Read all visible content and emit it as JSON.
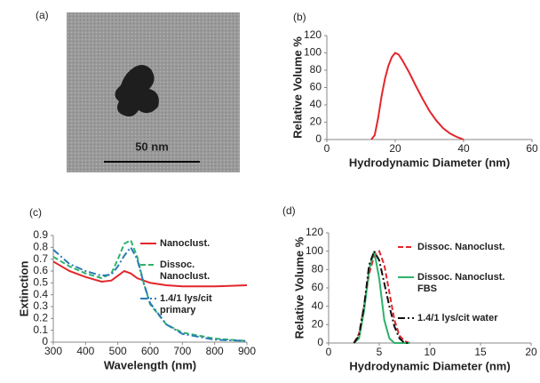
{
  "image_panel": {
    "label": "(a)",
    "scale_bar": "50 nm"
  },
  "chart_data": [
    {
      "type": "line",
      "panel_label": "(b)",
      "x_label": "Hydrodynamic Diameter (nm)",
      "y_label": "Relative Volume %",
      "x": [
        13,
        14,
        15,
        16,
        17,
        18,
        19,
        20,
        21,
        22,
        24,
        26,
        28,
        30,
        32,
        34,
        36,
        38,
        40
      ],
      "series": [
        {
          "color": "#e3262b",
          "dash": "solid",
          "values": [
            0,
            5,
            25,
            50,
            70,
            85,
            95,
            100,
            98,
            92,
            78,
            62,
            47,
            33,
            22,
            13,
            7,
            3,
            0
          ]
        }
      ],
      "xlim": [
        0,
        60
      ],
      "xticks": [
        0,
        20,
        40,
        60
      ],
      "ylim": [
        0,
        120
      ],
      "yticks": [
        0,
        20,
        40,
        60,
        80,
        100,
        120
      ]
    },
    {
      "type": "line",
      "panel_label": "(c)",
      "x_label": "Wavelength (nm)",
      "y_label": "Extinction",
      "x": [
        300,
        350,
        400,
        450,
        480,
        500,
        520,
        540,
        560,
        580,
        600,
        650,
        700,
        800,
        900
      ],
      "series": [
        {
          "name": "Nanoclust.",
          "color": "#e3262b",
          "dash": "solid",
          "values": [
            0.68,
            0.6,
            0.55,
            0.51,
            0.52,
            0.56,
            0.6,
            0.58,
            0.54,
            0.52,
            0.5,
            0.48,
            0.47,
            0.47,
            0.48
          ]
        },
        {
          "name": "Dissoc. Nanoclust.",
          "color": "#2db36a",
          "dash": "dashed",
          "values": [
            0.72,
            0.64,
            0.58,
            0.54,
            0.58,
            0.7,
            0.83,
            0.86,
            0.72,
            0.5,
            0.32,
            0.15,
            0.08,
            0.03,
            0.01
          ]
        },
        {
          "name": "1.4/1 lys/cit primary",
          "color": "#2a7ab8",
          "dash": "dashdot",
          "values": [
            0.78,
            0.66,
            0.6,
            0.56,
            0.57,
            0.64,
            0.73,
            0.8,
            0.7,
            0.5,
            0.33,
            0.15,
            0.07,
            0.02,
            0.01
          ]
        }
      ],
      "xlim": [
        300,
        900
      ],
      "xticks": [
        300,
        400,
        500,
        600,
        700,
        800,
        900
      ],
      "ylim": [
        0,
        0.9
      ],
      "yticks": [
        0,
        0.1,
        0.2,
        0.3,
        0.4,
        0.5,
        0.6,
        0.7,
        0.8,
        0.9
      ]
    },
    {
      "type": "line",
      "panel_label": "(d)",
      "x_label": "Hydrodynamic Diameter (nm)",
      "y_label": "Relative Volume %",
      "x": [
        2.5,
        3,
        3.5,
        4,
        4.5,
        5,
        5.5,
        6,
        6.5,
        7,
        7.5,
        8
      ],
      "series": [
        {
          "name": "Dissoc. Nanoclust.",
          "color": "#e3262b",
          "dash": "dashed",
          "values": [
            0,
            10,
            40,
            75,
            95,
            100,
            85,
            55,
            25,
            8,
            2,
            0
          ]
        },
        {
          "name": "Dissoc. Nanoclust. FBS",
          "color": "#2db36a",
          "dash": "solid",
          "values": [
            0,
            5,
            35,
            80,
            100,
            70,
            25,
            5,
            0,
            0,
            0,
            0
          ]
        },
        {
          "name": "1.4/1 lys/cit water",
          "color": "#111111",
          "dash": "dashdot",
          "values": [
            0,
            8,
            40,
            85,
            100,
            90,
            65,
            40,
            18,
            5,
            0,
            0
          ]
        }
      ],
      "xlim": [
        0,
        20
      ],
      "xticks": [
        0,
        5,
        10,
        15,
        20
      ],
      "ylim": [
        0,
        120
      ],
      "yticks": [
        0,
        20,
        40,
        60,
        80,
        100,
        120
      ]
    }
  ]
}
